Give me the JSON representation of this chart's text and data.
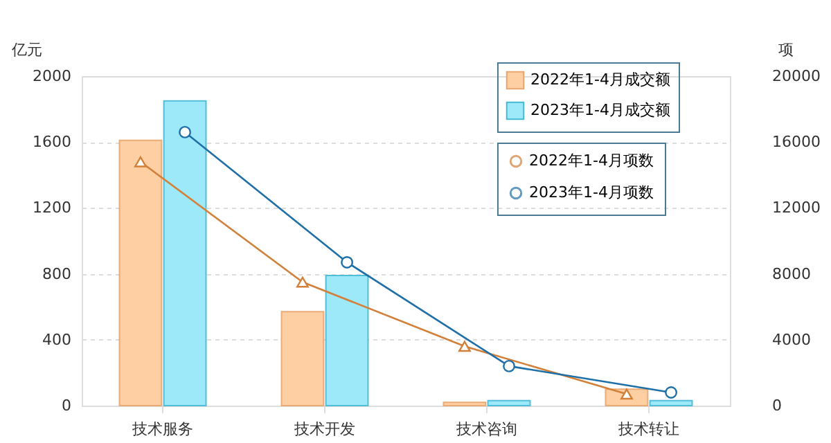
{
  "chart_data": {
    "type": "bar",
    "ylabel": "亿元",
    "y2label": "项",
    "categories": [
      "技术服务",
      "技术开发",
      "技术咨询",
      "技术转让"
    ],
    "series": [
      {
        "name": "2022年1-4月成交额",
        "color": "#fdcfa3",
        "values": [
          1610,
          570,
          20,
          100
        ]
      },
      {
        "name": "2023年1-4月成交额",
        "color": "#9ee9f9",
        "values": [
          1850,
          790,
          30,
          30
        ]
      },
      {
        "name": "2022年1-4月项数",
        "type": "line",
        "axis": "y2",
        "marker": "triangle",
        "color": "#d2803a",
        "values": [
          14800,
          7500,
          3600,
          700
        ]
      },
      {
        "name": "2023年1-4月项数",
        "type": "line",
        "axis": "y2",
        "marker": "circle",
        "color": "#1f6fa8",
        "values": [
          16600,
          8700,
          2400,
          800
        ]
      }
    ],
    "ylim": [
      0,
      2000
    ],
    "yticks": [
      0,
      400,
      800,
      1200,
      1600,
      2000
    ],
    "y2lim": [
      0,
      20000
    ],
    "y2ticks": [
      0,
      4000,
      8000,
      12000,
      16000,
      20000
    ],
    "grid": "y",
    "legend": "top right"
  }
}
